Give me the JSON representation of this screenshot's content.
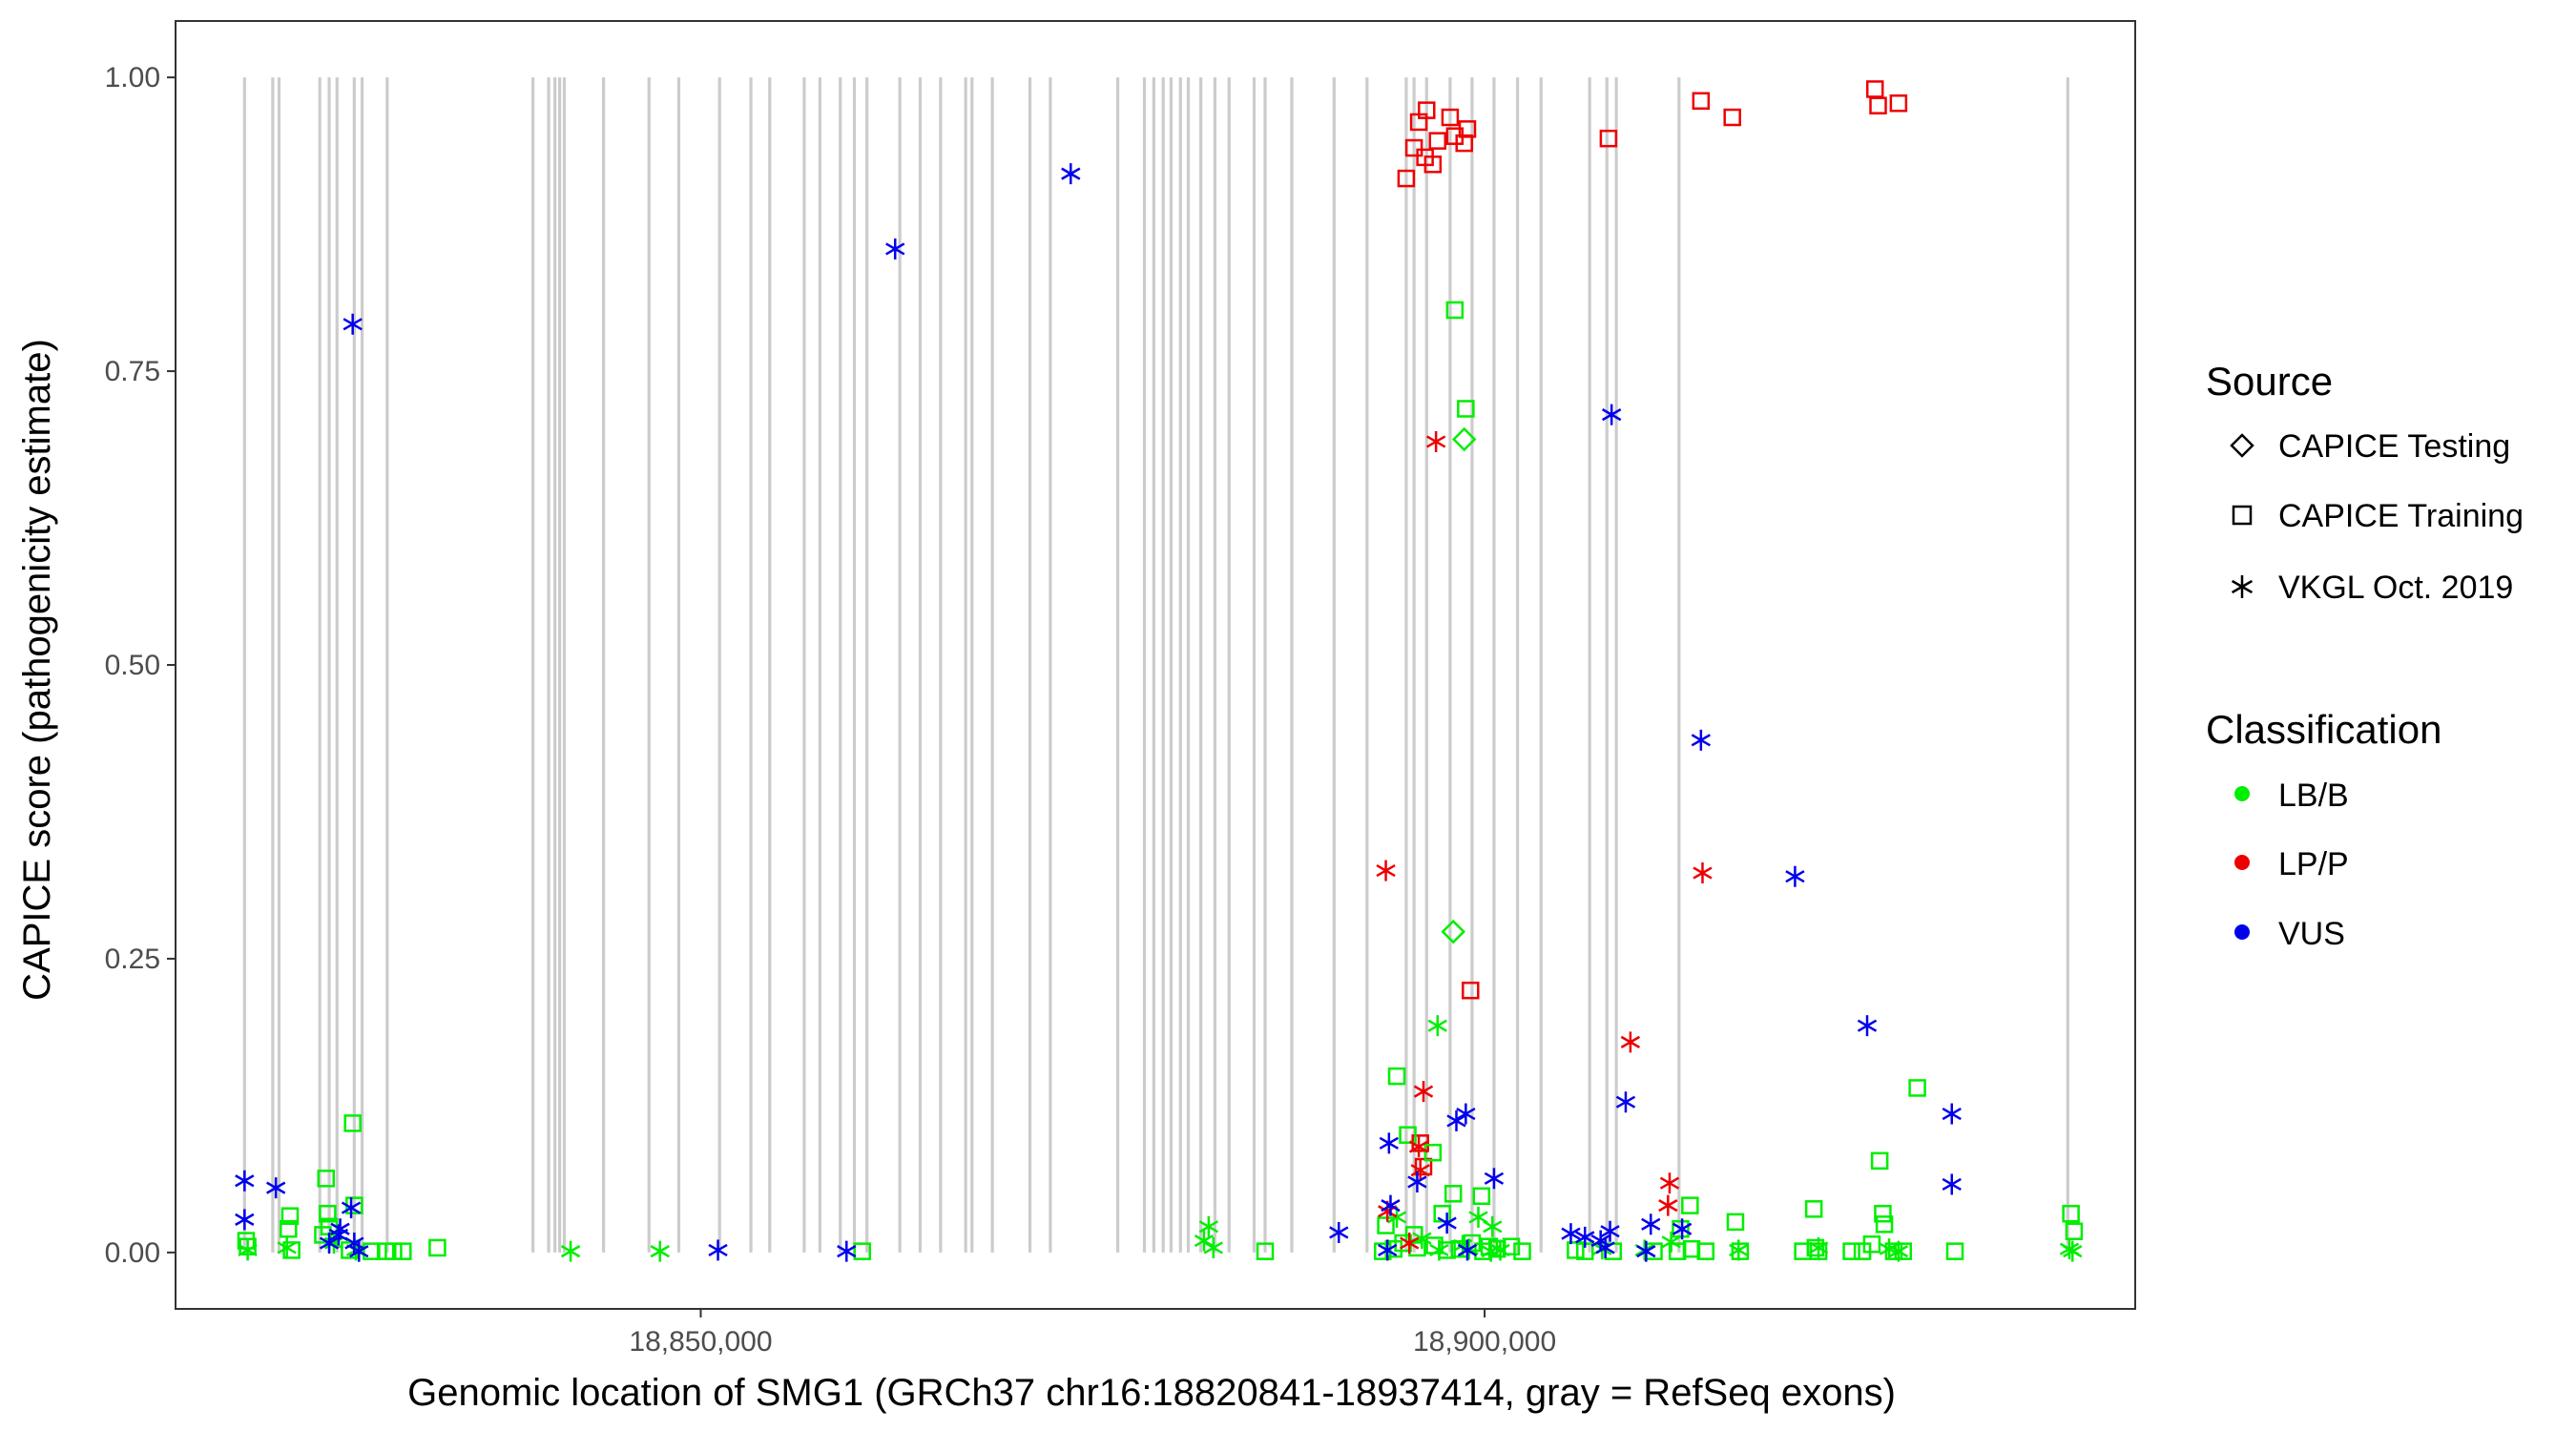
{
  "chart_data": {
    "type": "scatter",
    "xlabel": "Genomic location of SMG1 (GRCh37 chr16:18820841-18937414, gray = RefSeq exons)",
    "ylabel": "CAPICE score (pathogenicity estimate)",
    "xlim": [
      18816500,
      18941500
    ],
    "ylim": [
      -0.048,
      1.048
    ],
    "x_ticks": [
      18850000,
      18900000
    ],
    "x_tick_labels": [
      "18,850,000",
      "18,900,000"
    ],
    "y_ticks": [
      0,
      0.25,
      0.5,
      0.75,
      1
    ],
    "y_tick_labels": [
      "0.00",
      "0.25",
      "0.50",
      "0.75",
      "1.00"
    ],
    "grid": false,
    "exon_color": "#cccccc",
    "exons": [
      18820900,
      18822700,
      18823100,
      18825700,
      18826300,
      18826800,
      18827900,
      18828400,
      18830000,
      18839300,
      18840300,
      18840700,
      18841000,
      18841300,
      18843800,
      18846700,
      18848600,
      18851200,
      18853200,
      18854400,
      18856600,
      18857600,
      18858900,
      18859800,
      18860600,
      18862700,
      18864000,
      18865300,
      18866900,
      18867300,
      18868600,
      18871000,
      18872300,
      18876600,
      18878300,
      18878900,
      18879500,
      18880000,
      18880600,
      18881100,
      18881900,
      18882800,
      18883700,
      18885300,
      18886000,
      18887700,
      18890400,
      18892500,
      18895000,
      18895500,
      18896300,
      18897800,
      18899200,
      18900600,
      18902100,
      18903600,
      18906700,
      18907800,
      18908400,
      18912400,
      18937200
    ],
    "legend": {
      "source_title": "Source",
      "source_items": [
        {
          "label": "CAPICE Testing",
          "shape": "diamond"
        },
        {
          "label": "CAPICE Training",
          "shape": "square"
        },
        {
          "label": "VKGL Oct. 2019",
          "shape": "asterisk"
        }
      ],
      "class_title": "Classification",
      "class_items": [
        {
          "label": "LB/B",
          "color": "#00ee00"
        },
        {
          "label": "LP/P",
          "color": "#ee0000"
        },
        {
          "label": "VUS",
          "color": "#0000ee"
        }
      ],
      "placement": "right"
    },
    "series": [
      {
        "source": "CAPICE Training",
        "classification": "LP/P",
        "shape": "square",
        "color": "#ee0000",
        "points": [
          [
            18895000,
            0.914
          ],
          [
            18895500,
            0.94
          ],
          [
            18895800,
            0.962
          ],
          [
            18896200,
            0.932
          ],
          [
            18896300,
            0.972
          ],
          [
            18896700,
            0.926
          ],
          [
            18897000,
            0.946
          ],
          [
            18897800,
            0.966
          ],
          [
            18898100,
            0.95
          ],
          [
            18898700,
            0.944
          ],
          [
            18898900,
            0.956
          ],
          [
            18907900,
            0.948
          ],
          [
            18913800,
            0.98
          ],
          [
            18915800,
            0.966
          ],
          [
            18924900,
            0.99
          ],
          [
            18925100,
            0.976
          ],
          [
            18926400,
            0.978
          ],
          [
            18899100,
            0.223
          ],
          [
            18895900,
            0.093
          ],
          [
            18896100,
            0.073
          ]
        ]
      },
      {
        "source": "CAPICE Training",
        "classification": "LB/B",
        "shape": "square",
        "color": "#00ee00",
        "points": [
          [
            18898100,
            0.802
          ],
          [
            18898800,
            0.718
          ],
          [
            18894400,
            0.15
          ],
          [
            18895100,
            0.1
          ],
          [
            18896700,
            0.085
          ],
          [
            18897300,
            0.033
          ],
          [
            18898000,
            0.05
          ],
          [
            18893700,
            0.023
          ],
          [
            18895500,
            0.015
          ],
          [
            18899800,
            0.048
          ],
          [
            18900300,
            0.005
          ],
          [
            18901700,
            0.005
          ],
          [
            18826100,
            0.063
          ],
          [
            18827800,
            0.11
          ],
          [
            18827900,
            0.04
          ],
          [
            18826200,
            0.033
          ],
          [
            18826300,
            0.022
          ],
          [
            18823800,
            0.031
          ],
          [
            18823700,
            0.02
          ],
          [
            18821000,
            0.01
          ],
          [
            18821100,
            0.005
          ],
          [
            18823900,
            0.002
          ],
          [
            18825900,
            0.015
          ],
          [
            18827600,
            0.002
          ],
          [
            18829000,
            0.001
          ],
          [
            18829900,
            0.001
          ],
          [
            18830400,
            0.001
          ],
          [
            18831000,
            0.001
          ],
          [
            18833200,
            0.004
          ],
          [
            18860300,
            0.001
          ],
          [
            18886000,
            0.001
          ],
          [
            18893500,
            0.001
          ],
          [
            18894200,
            0.003
          ],
          [
            18894800,
            0.008
          ],
          [
            18895700,
            0.004
          ],
          [
            18896800,
            0.006
          ],
          [
            18897600,
            0.002
          ],
          [
            18898400,
            0.003
          ],
          [
            18899200,
            0.008
          ],
          [
            18899900,
            0.001
          ],
          [
            18900800,
            0.003
          ],
          [
            18902400,
            0.001
          ],
          [
            18905800,
            0.002
          ],
          [
            18906400,
            0.001
          ],
          [
            18908200,
            0.001
          ],
          [
            18910800,
            0.001
          ],
          [
            18912300,
            0.001
          ],
          [
            18912500,
            0.02
          ],
          [
            18913100,
            0.04
          ],
          [
            18913200,
            0.003
          ],
          [
            18914100,
            0.001
          ],
          [
            18916000,
            0.026
          ],
          [
            18916300,
            0.001
          ],
          [
            18920300,
            0.001
          ],
          [
            18921000,
            0.037
          ],
          [
            18921100,
            0.004
          ],
          [
            18921300,
            0.001
          ],
          [
            18925200,
            0.078
          ],
          [
            18925400,
            0.033
          ],
          [
            18925500,
            0.024
          ],
          [
            18924700,
            0.007
          ],
          [
            18923400,
            0.001
          ],
          [
            18924100,
            0.001
          ],
          [
            18926100,
            0.001
          ],
          [
            18926700,
            0.001
          ],
          [
            18927600,
            0.14
          ],
          [
            18930000,
            0.001
          ],
          [
            18937400,
            0.033
          ],
          [
            18937600,
            0.018
          ]
        ]
      },
      {
        "source": "CAPICE Testing",
        "classification": "LB/B",
        "shape": "diamond",
        "color": "#00ee00",
        "points": [
          [
            18898700,
            0.692
          ],
          [
            18898000,
            0.273
          ]
        ]
      },
      {
        "source": "VKGL Oct. 2019",
        "classification": "LB/B",
        "shape": "asterisk",
        "color": "#00ee00",
        "points": [
          [
            18897000,
            0.193
          ],
          [
            18899600,
            0.03
          ],
          [
            18900500,
            0.022
          ],
          [
            18841700,
            0.001
          ],
          [
            18847400,
            0.001
          ],
          [
            18882400,
            0.022
          ],
          [
            18882100,
            0.01
          ],
          [
            18882700,
            0.004
          ],
          [
            18894400,
            0.03
          ],
          [
            18896000,
            0.012
          ],
          [
            18897100,
            0.002
          ],
          [
            18898600,
            0.006
          ],
          [
            18899000,
            0.003
          ],
          [
            18900400,
            0.001
          ],
          [
            18901000,
            0.002
          ],
          [
            18907500,
            0.003
          ],
          [
            18910200,
            0.002
          ],
          [
            18911900,
            0.009
          ],
          [
            18916200,
            0.002
          ],
          [
            18921300,
            0.004
          ],
          [
            18925800,
            0.003
          ],
          [
            18926400,
            0.001
          ],
          [
            18937300,
            0.003
          ],
          [
            18937500,
            0.001
          ],
          [
            18821100,
            0.002
          ],
          [
            18823600,
            0.004
          ],
          [
            18826600,
            0.008
          ],
          [
            18828000,
            0.002
          ]
        ]
      },
      {
        "source": "VKGL Oct. 2019",
        "classification": "LP/P",
        "shape": "asterisk",
        "color": "#ee0000",
        "points": [
          [
            18896900,
            0.69
          ],
          [
            18893700,
            0.325
          ],
          [
            18909300,
            0.179
          ],
          [
            18913900,
            0.323
          ],
          [
            18896100,
            0.137
          ],
          [
            18895800,
            0.09
          ],
          [
            18893800,
            0.035
          ],
          [
            18895200,
            0.008
          ],
          [
            18911800,
            0.059
          ],
          [
            18911700,
            0.04
          ],
          [
            18895900,
            0.07
          ]
        ]
      },
      {
        "source": "VKGL Oct. 2019",
        "classification": "VUS",
        "shape": "asterisk",
        "color": "#0000ee",
        "points": [
          [
            18827800,
            0.79
          ],
          [
            18862400,
            0.854
          ],
          [
            18873600,
            0.918
          ],
          [
            18908100,
            0.713
          ],
          [
            18913800,
            0.436
          ],
          [
            18919800,
            0.32
          ],
          [
            18924400,
            0.193
          ],
          [
            18909000,
            0.128
          ],
          [
            18929800,
            0.118
          ],
          [
            18898800,
            0.118
          ],
          [
            18898200,
            0.112
          ],
          [
            18893900,
            0.093
          ],
          [
            18929800,
            0.058
          ],
          [
            18900600,
            0.063
          ],
          [
            18895700,
            0.06
          ],
          [
            18820900,
            0.061
          ],
          [
            18820900,
            0.028
          ],
          [
            18822900,
            0.055
          ],
          [
            18827700,
            0.038
          ],
          [
            18827000,
            0.02
          ],
          [
            18827900,
            0.008
          ],
          [
            18826900,
            0.015
          ],
          [
            18826300,
            0.008
          ],
          [
            18828200,
            0.001
          ],
          [
            18851100,
            0.002
          ],
          [
            18859300,
            0.001
          ],
          [
            18890700,
            0.017
          ],
          [
            18894000,
            0.04
          ],
          [
            18897600,
            0.025
          ],
          [
            18905500,
            0.016
          ],
          [
            18906400,
            0.013
          ],
          [
            18907400,
            0.01
          ],
          [
            18908000,
            0.018
          ],
          [
            18910600,
            0.024
          ],
          [
            18912600,
            0.02
          ],
          [
            18893800,
            0.002
          ],
          [
            18898900,
            0.002
          ],
          [
            18907700,
            0.004
          ],
          [
            18910300,
            0.001
          ]
        ]
      }
    ]
  }
}
